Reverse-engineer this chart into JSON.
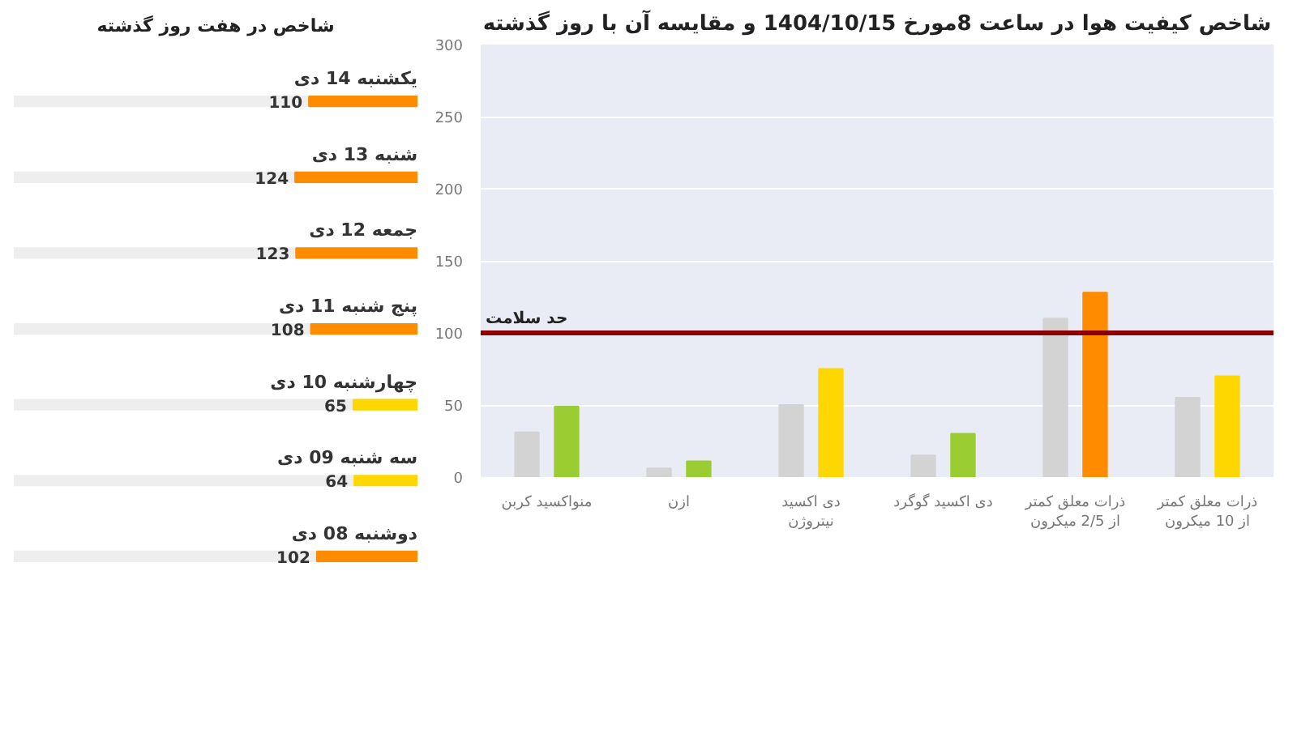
{
  "chart_data": [
    {
      "type": "bar",
      "orientation": "horizontal",
      "title": "شاخص در هفت روز گذشته",
      "categories": [
        "یکشنبه 14 دی",
        "شنبه 13 دی",
        "جمعه 12 دی",
        "پنج شنبه 11 دی",
        "چهارشنبه 10 دی",
        "سه شنبه 09 دی",
        "دوشنبه 08 دی"
      ],
      "values": [
        110,
        124,
        123,
        108,
        65,
        64,
        102
      ],
      "colors": [
        "#ff8c00",
        "#ff8c00",
        "#ff8c00",
        "#ff8c00",
        "#ffd700",
        "#ffd700",
        "#ff8c00"
      ],
      "data_labels": true,
      "tick_labels": false
    },
    {
      "type": "bar",
      "title": "شاخص کیفیت هوا در ساعت 8مورخ 1404/10/15 و مقایسه آن با روز گذشته",
      "categories": [
        "منواکسید کربن",
        "ازن",
        "دی اکسید نیتروژن",
        "دی اکسید گوگرد",
        "ذرات معلق کمتر از 2/5 میکرون",
        "ذرات معلق کمتر از 10 میکرون"
      ],
      "series": [
        {
          "colors": [
            "#d3d3d3",
            "#d3d3d3",
            "#d3d3d3",
            "#d3d3d3",
            "#d3d3d3",
            "#d3d3d3"
          ],
          "values": [
            31,
            6,
            50,
            15,
            110,
            55
          ]
        },
        {
          "colors": [
            "#9acd32",
            "#9acd32",
            "#ffd700",
            "#9acd32",
            "#ff8c00",
            "#ffd700"
          ],
          "values": [
            49,
            11,
            75,
            30,
            128,
            70
          ]
        }
      ],
      "ylim": [
        0,
        300
      ],
      "yticks": [
        0,
        50,
        100,
        150,
        200,
        250,
        300
      ],
      "grid": "y",
      "ref_lines": [
        {
          "axis": "y",
          "value": 100,
          "label": "حد سلامت",
          "color": "#8b0000"
        }
      ]
    }
  ]
}
